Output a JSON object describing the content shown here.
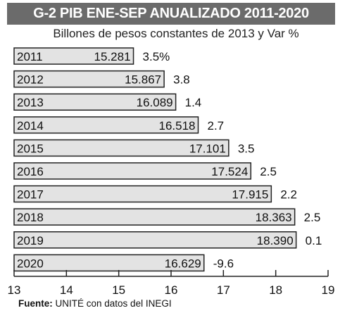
{
  "header": {
    "title": "G-2 PIB ENE-SEP ANUALIZADO 2011-2020",
    "subtitle": "Billones de pesos constantes de 2013 y Var %"
  },
  "source": {
    "label": "Fuente:",
    "text": "UNITÉ con datos del INEGI"
  },
  "colors": {
    "title_bg": "#6b6b6b",
    "bar_fill": "#e3e3e3",
    "bar_stroke": "#222222"
  },
  "chart_data": {
    "type": "bar",
    "orientation": "horizontal",
    "categories": [
      "2011",
      "2012",
      "2013",
      "2014",
      "2015",
      "2016",
      "2017",
      "2018",
      "2019",
      "2020"
    ],
    "series": [
      {
        "values": [
          15.281,
          15.867,
          16.089,
          16.518,
          17.101,
          17.524,
          17.915,
          18.363,
          18.39,
          16.629
        ],
        "value_labels": [
          "15.281",
          "15.867",
          "16.089",
          "16.518",
          "17.101",
          "17.524",
          "17.915",
          "18.363",
          "18.390",
          "16.629"
        ]
      }
    ],
    "var_labels": [
      "3.5%",
      "3.8",
      "1.4",
      "2.7",
      "3.5",
      "2.5",
      "2.2",
      "2.5",
      "0.1",
      "-9.6"
    ],
    "xlim": [
      13,
      19
    ],
    "x_ticks": [
      "13",
      "14",
      "15",
      "16",
      "17",
      "18",
      "19"
    ],
    "grid": false
  }
}
